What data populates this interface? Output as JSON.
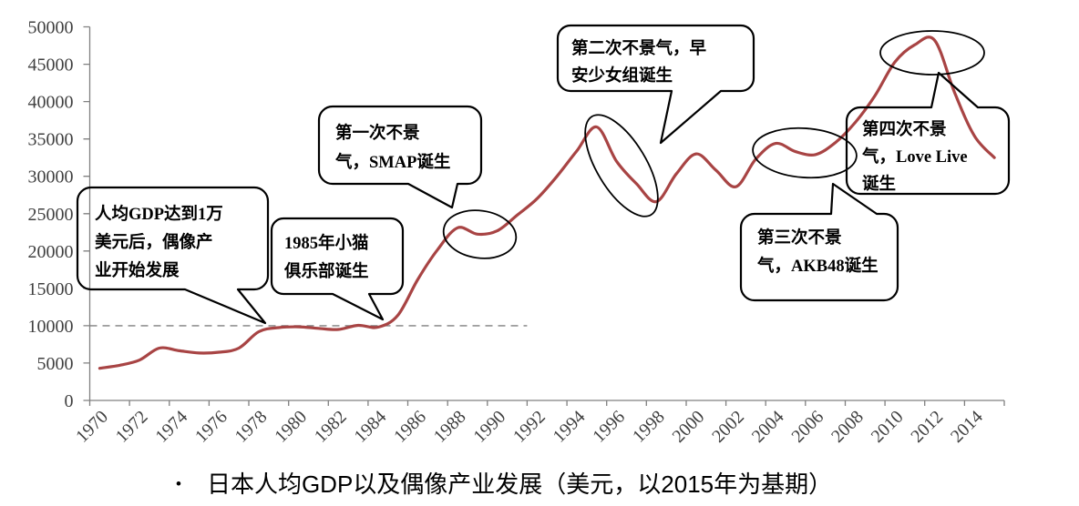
{
  "caption": {
    "bullet": "•",
    "text": "日本人均GDP以及偶像产业发展（美元，以2015年为基期）"
  },
  "chart_data": {
    "type": "line",
    "title": "",
    "series": [
      {
        "name": "日本人均GDP（美元，以2015年为基期）",
        "x": [
          1970,
          1971,
          1972,
          1973,
          1974,
          1975,
          1976,
          1977,
          1978,
          1979,
          1980,
          1981,
          1982,
          1983,
          1984,
          1985,
          1986,
          1987,
          1988,
          1989,
          1990,
          1991,
          1992,
          1993,
          1994,
          1995,
          1996,
          1997,
          1998,
          1999,
          2000,
          2001,
          2002,
          2003,
          2004,
          2005,
          2006,
          2007,
          2008,
          2009,
          2010,
          2011,
          2012,
          2013,
          2014,
          2015
        ],
        "values": [
          4300,
          4700,
          5400,
          7000,
          6650,
          6350,
          6450,
          7000,
          9200,
          9750,
          9850,
          9650,
          9500,
          10050,
          9800,
          11400,
          16200,
          20200,
          23100,
          22250,
          22700,
          24800,
          27000,
          30000,
          33400,
          36600,
          32000,
          29000,
          26600,
          30300,
          33000,
          30800,
          28600,
          32300,
          34400,
          33300,
          32900,
          34500,
          37200,
          40800,
          45300,
          47600,
          48200,
          41200,
          35400,
          32500
        ]
      }
    ],
    "ylim": [
      0,
      50000
    ],
    "ytick_interval": 5000,
    "ytick_labels": [
      "0",
      "5000",
      "10000",
      "15000",
      "20000",
      "25000",
      "30000",
      "35000",
      "40000",
      "45000",
      "50000"
    ],
    "xtick_labels": [
      "1970",
      "1972",
      "1974",
      "1976",
      "1978",
      "1980",
      "1982",
      "1984",
      "1986",
      "1988",
      "1990",
      "1992",
      "1994",
      "1996",
      "1998",
      "2000",
      "2002",
      "2004",
      "2006",
      "2008",
      "2010",
      "2012",
      "2014"
    ],
    "reference_line": {
      "value": 10000,
      "style": "dashed"
    },
    "grid": "off",
    "legend": "none",
    "line_color": "#A84444",
    "axis_color": "#808080",
    "label_color": "#3f3f3f"
  },
  "annotations": {
    "callouts": [
      {
        "id": "gdp-10000",
        "text": "人均GDP达到1万\n美元后，偶像产\n业开始发展"
      },
      {
        "id": "onyanko-1985",
        "text": "1985年小猫\n俱乐部诞生"
      },
      {
        "id": "first-recession",
        "text": "第一次不景\n气，SMAP诞生"
      },
      {
        "id": "second-recession",
        "text": "第二次不景气，早\n安少女组诞生"
      },
      {
        "id": "third-recession",
        "text": "第三次不景\n气，AKB48诞生"
      },
      {
        "id": "fourth-recession",
        "text": "第四次不景\n气，Love Live\n诞生"
      }
    ],
    "ellipse_count": 4
  }
}
